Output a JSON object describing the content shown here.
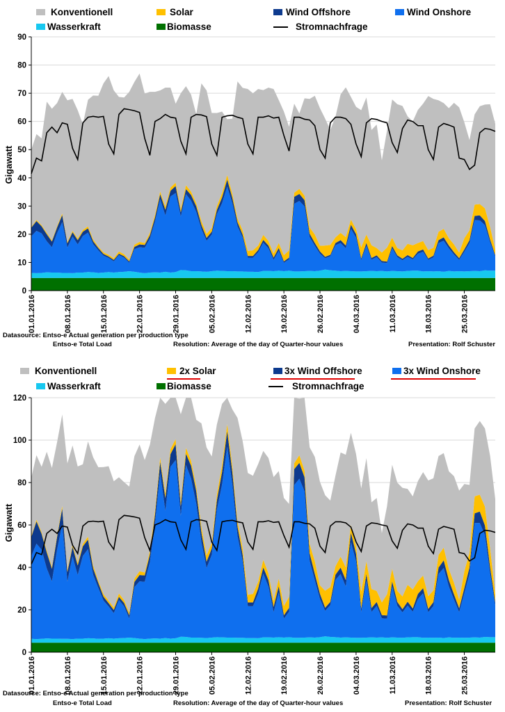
{
  "colors": {
    "konventionell": "#bfbfbf",
    "solar": "#ffc000",
    "offshore": "#0d3a8e",
    "onshore": "#0f6fee",
    "wasser": "#17c8f0",
    "biomasse": "#007000",
    "nachfrage": "#000000",
    "underline": "#e00000"
  },
  "footer": {
    "source1": "Datasource: Entso-e  Actual generation per production type",
    "source2": "Entso-e  Total Load",
    "resolution": "Resolution: Average of the day of Quarter-hour values",
    "presentation": "Presentation: Rolf Schuster"
  },
  "chart_data": [
    {
      "type": "area",
      "ylabel": "Gigawatt",
      "ylim": [
        0,
        90
      ],
      "yticks": [
        0,
        10,
        20,
        30,
        40,
        50,
        60,
        70,
        80,
        90
      ],
      "xticks": [
        "01.01.2016",
        "08.01.2016",
        "15.01.2016",
        "22.01.2016",
        "29.01.2016",
        "05.02.2016",
        "12.02.2016",
        "19.02.2016",
        "26.02.2016",
        "04.03.2016",
        "11.03.2016",
        "18.03.2016",
        "25.03.2016"
      ],
      "legend": [
        "Konventionell",
        "Solar",
        "Wind Offshore",
        "Wind Onshore",
        "Wasserkraft",
        "Biomasse",
        "Stromnachfrage"
      ],
      "series": {
        "biomasse": [
          4.5,
          4.5,
          4.5,
          4.5,
          4.5,
          4.5,
          4.5,
          4.5,
          4.5,
          4.5,
          4.5,
          4.5,
          4.5,
          4.5,
          4.5,
          4.5,
          4.5,
          4.5,
          4.5,
          4.5,
          4.5,
          4.5,
          4.5,
          4.5,
          4.5,
          4.5,
          4.5,
          4.5,
          4.5,
          4.5,
          4.5,
          4.5,
          4.5,
          4.5,
          4.5,
          4.5,
          4.5,
          4.5,
          4.5,
          4.5,
          4.5,
          4.5,
          4.5,
          4.5,
          4.5,
          4.5,
          4.5,
          4.5,
          4.5,
          4.5,
          4.5,
          4.5,
          4.5,
          4.5,
          4.5,
          4.5,
          4.5,
          4.5,
          4.5,
          4.5,
          4.5,
          4.5,
          4.5,
          4.5,
          4.5,
          4.5,
          4.5,
          4.5,
          4.5,
          4.5,
          4.5,
          4.5,
          4.5,
          4.5,
          4.5,
          4.5,
          4.5,
          4.5,
          4.5,
          4.5,
          4.5,
          4.5,
          4.5,
          4.5,
          4.5,
          4.5,
          4.5,
          4.5,
          4.5,
          4.5,
          4.5
        ],
        "wasserkraft": [
          1.8,
          1.7,
          1.8,
          2.0,
          1.9,
          1.9,
          1.8,
          1.8,
          1.7,
          1.9,
          1.9,
          2.1,
          2.0,
          1.8,
          1.9,
          2.1,
          1.9,
          2.1,
          2.2,
          2.4,
          2.2,
          1.9,
          1.7,
          1.9,
          2.0,
          1.9,
          2.2,
          1.9,
          2.1,
          2.8,
          2.7,
          2.4,
          2.4,
          2.3,
          2.2,
          2.4,
          2.6,
          2.5,
          2.4,
          2.4,
          2.3,
          2.3,
          2.2,
          2.2,
          2.1,
          2.5,
          2.5,
          2.4,
          2.6,
          2.4,
          2.6,
          2.3,
          2.3,
          2.4,
          2.5,
          2.4,
          2.6,
          3.0,
          2.7,
          2.6,
          2.4,
          2.5,
          2.4,
          2.3,
          2.3,
          2.4,
          2.5,
          2.4,
          2.5,
          2.3,
          2.5,
          2.4,
          2.3,
          2.5,
          2.6,
          2.6,
          2.3,
          2.4,
          2.3,
          2.4,
          2.2,
          2.5,
          2.3,
          2.4,
          2.3,
          2.4,
          2.5,
          2.4,
          2.7,
          2.6,
          2.6
        ],
        "wind_onshore": [
          13,
          15,
          14,
          11,
          9,
          14,
          18,
          9,
          13,
          10,
          13,
          14,
          10,
          8,
          6,
          5,
          4,
          6,
          5,
          3,
          8,
          9,
          9,
          12,
          18,
          26,
          20,
          27,
          28,
          19,
          27,
          25,
          21,
          15,
          11,
          13,
          20,
          24,
          30,
          24,
          16,
          12,
          5,
          5,
          7,
          10,
          8,
          4,
          7,
          3,
          4,
          24,
          25,
          23,
          12,
          9,
          6,
          4,
          5,
          9,
          10,
          8,
          15,
          12,
          4,
          9,
          4,
          5,
          3,
          3,
          8,
          5,
          4,
          5,
          4,
          6,
          7,
          4,
          5,
          10,
          11,
          8,
          6,
          4,
          7,
          10,
          18,
          18,
          16,
          10,
          5
        ],
        "wind_offshore": [
          3.0,
          3.5,
          2.5,
          2.5,
          2.0,
          2.0,
          2.5,
          1.5,
          1.5,
          1.5,
          1.5,
          1.5,
          1.0,
          0.8,
          0.6,
          0.5,
          0.5,
          0.5,
          0.5,
          0.5,
          0.8,
          1.0,
          1.0,
          1.2,
          1.5,
          1.8,
          2.0,
          2.0,
          2.5,
          1.5,
          1.8,
          2.0,
          2.0,
          1.5,
          1.0,
          1.0,
          1.5,
          2.0,
          2.5,
          2.0,
          1.5,
          1.0,
          0.6,
          0.6,
          0.8,
          1.0,
          1.0,
          0.8,
          1.0,
          0.5,
          0.6,
          2.5,
          2.5,
          2.2,
          1.2,
          1.0,
          0.8,
          0.5,
          0.5,
          0.8,
          1.0,
          1.0,
          1.5,
          1.2,
          0.6,
          1.0,
          0.6,
          0.6,
          0.5,
          0.5,
          0.8,
          0.6,
          0.5,
          0.6,
          0.5,
          0.8,
          0.8,
          0.5,
          0.6,
          1.0,
          1.2,
          1.0,
          0.8,
          0.6,
          0.8,
          1.0,
          1.5,
          1.8,
          1.5,
          1.0,
          0.5
        ],
        "solar": [
          0.3,
          0.4,
          0.4,
          0.5,
          0.4,
          0.5,
          0.6,
          0.5,
          0.5,
          0.6,
          0.6,
          0.7,
          0.7,
          0.5,
          0.6,
          0.6,
          0.6,
          0.8,
          0.7,
          0.6,
          0.8,
          0.9,
          0.7,
          0.9,
          1.0,
          1.0,
          1.1,
          1.2,
          1.2,
          1.2,
          1.4,
          1.2,
          1.1,
          1.4,
          1.5,
          1.3,
          1.4,
          1.6,
          1.6,
          1.5,
          1.3,
          1.6,
          1.8,
          2.0,
          1.6,
          1.8,
          1.6,
          1.5,
          1.8,
          2.2,
          2.6,
          1.4,
          1.8,
          1.6,
          2.2,
          3.0,
          2.0,
          4.0,
          3.5,
          2.0,
          2.6,
          3.0,
          1.8,
          1.8,
          4.0,
          3.0,
          4.5,
          2.6,
          3.0,
          5.0,
          3.0,
          2.6,
          3.0,
          4.0,
          4.5,
          3.0,
          3.0,
          3.0,
          2.8,
          3.0,
          3.0,
          2.6,
          2.8,
          2.0,
          4.0,
          3.5,
          4.0,
          4.0,
          4.5,
          4.5,
          2.0
        ],
        "konventionell": [
          27.4,
          30.4,
          30.8,
          46.5,
          46.7,
          43.6,
          43.1,
          50.2,
          46.8,
          45.5,
          37.5,
          44.9,
          51.0,
          53.5,
          59.9,
          63.4,
          59.5,
          54.8,
          55.6,
          59.5,
          57.7,
          59.7,
          53.0,
          50.0,
          43.5,
          35.8,
          42.2,
          35.4,
          28.0,
          41.0,
          35.1,
          34.4,
          31.5,
          48.8,
          50.8,
          40.8,
          33.0,
          28.9,
          19.8,
          26.6,
          48.6,
          50.5,
          57.4,
          55.7,
          55.5,
          51.3,
          54.4,
          58.3,
          50.7,
          50.9,
          43.8,
          31.6,
          26.7,
          34.5,
          45.6,
          49.2,
          48.8,
          45.0,
          40.8,
          42.7,
          49.1,
          53.1,
          43.5,
          43.4,
          48.6,
          48.6,
          40.9,
          43.8,
          32.7,
          41.5,
          49.0,
          51.0,
          51.2,
          45.2,
          43.9,
          47.2,
          48.7,
          54.6,
          52.8,
          46.6,
          44.6,
          46.1,
          50.2,
          51.5,
          41.1,
          32.0,
          32.0,
          34.7,
          36.8,
          43.5,
          44.6
        ],
        "stromnachfrage": [
          41.5,
          47,
          46,
          56,
          58,
          56,
          59.5,
          59,
          50.5,
          46.5,
          59.5,
          61.5,
          61.8,
          61.5,
          61.8,
          52,
          48.5,
          62.5,
          64.5,
          64.2,
          63.8,
          63.2,
          54,
          48,
          60,
          61,
          62.5,
          61.5,
          61.2,
          53,
          48.5,
          61.5,
          62.5,
          62.3,
          61.7,
          52,
          48,
          61.5,
          62,
          62.2,
          61.5,
          61,
          52,
          48.5,
          61.5,
          61.5,
          62,
          61.2,
          61.5,
          55,
          49.5,
          61.5,
          61.5,
          60.8,
          60.5,
          58.5,
          50,
          47,
          59.5,
          61.5,
          61.5,
          61,
          59,
          52,
          47.5,
          59.5,
          61,
          60.7,
          60,
          59.5,
          52.5,
          49,
          57.5,
          60.5,
          60,
          58.5,
          58.5,
          50,
          46.5,
          58,
          59.3,
          58.7,
          58,
          47,
          46.5,
          43,
          44.5,
          56,
          57.5,
          57.2,
          56.5
        ]
      }
    },
    {
      "type": "area",
      "ylabel": "Gigawatt",
      "ylim": [
        0,
        120
      ],
      "yticks": [
        0,
        20,
        40,
        60,
        80,
        100,
        120
      ],
      "xticks": [
        "01.01.2016",
        "08.01.2016",
        "15.01.2016",
        "22.01.2016",
        "29.01.2016",
        "05.02.2016",
        "12.02.2016",
        "19.02.2016",
        "26.02.2016",
        "04.03.2016",
        "11.03.2016",
        "18.03.2016",
        "25.03.2016"
      ],
      "legend": [
        "Konventionell",
        "2x Solar",
        "3x Wind Offshore",
        "3x Wind Onshore",
        "Wasserkraft",
        "Biomasse",
        "Stromnachfrage"
      ],
      "underlined": [
        "2x Solar",
        "3x Wind Offshore",
        "3x Wind Onshore"
      ],
      "scaling": {
        "solar": 2,
        "wind_offshore": 3,
        "wind_onshore": 3
      }
    }
  ]
}
